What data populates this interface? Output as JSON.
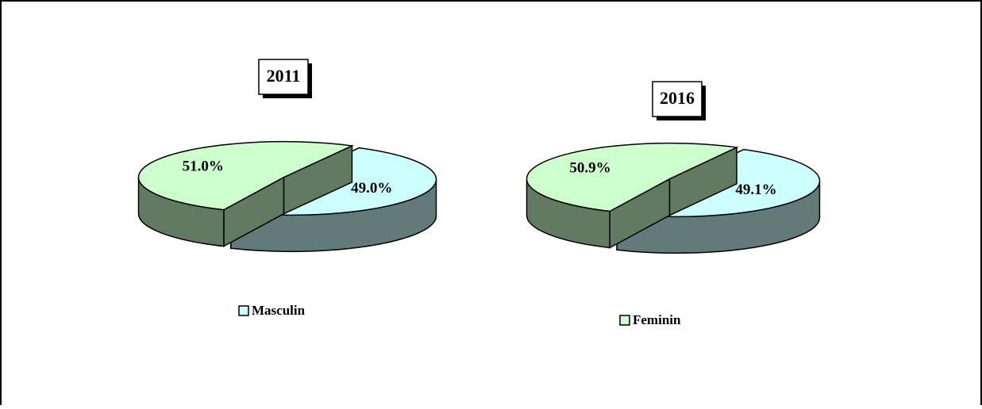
{
  "legend": [
    {
      "name": "Masculin",
      "color": "#ccffff"
    },
    {
      "name": "Feminin",
      "color": "#ccffcc"
    }
  ],
  "chart_data": [
    {
      "type": "pie",
      "title": "2011",
      "values": [
        49.0,
        51.0
      ],
      "value_labels": [
        "49.0%",
        "51.0%"
      ]
    },
    {
      "type": "pie",
      "title": "2016",
      "values": [
        49.1,
        50.9
      ],
      "value_labels": [
        "49.1%",
        "50.9%"
      ]
    }
  ]
}
